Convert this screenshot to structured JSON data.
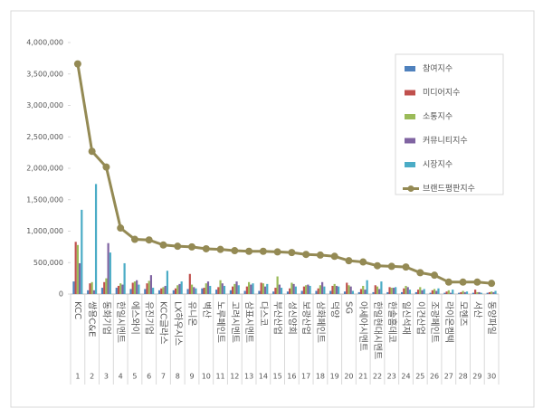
{
  "chart_data": {
    "type": "bar",
    "categories": [
      "KCC",
      "쌍용C&E",
      "동화기업",
      "한일시멘트",
      "에스와이",
      "유진기업",
      "KCC글라스",
      "LX하우시스",
      "유니온",
      "벽산",
      "노루페인트",
      "고려시멘트",
      "삼표시멘트",
      "다스코",
      "부산산업",
      "성신양회",
      "보광산업",
      "삼화페인트",
      "덕양",
      "SG",
      "아세아시멘트",
      "한일현대시멘트",
      "한솔홈데코",
      "일신석재",
      "이건산업",
      "조광페인트",
      "라이온켐텍",
      "모헨즈",
      "서산",
      "동양파일"
    ],
    "ranks": [
      1,
      2,
      3,
      4,
      5,
      6,
      7,
      8,
      9,
      10,
      11,
      12,
      13,
      14,
      15,
      16,
      17,
      18,
      19,
      20,
      21,
      22,
      23,
      24,
      25,
      26,
      27,
      28,
      29,
      30
    ],
    "series": [
      {
        "name": "참여지수",
        "color": "#4f81bd",
        "values": [
          200000,
          60000,
          100000,
          100000,
          80000,
          80000,
          60000,
          60000,
          80000,
          90000,
          70000,
          60000,
          50000,
          50000,
          40000,
          40000,
          50000,
          50000,
          50000,
          40000,
          30000,
          30000,
          30000,
          30000,
          30000,
          20000,
          20000,
          20000,
          20000,
          20000
        ]
      },
      {
        "name": "미디어지수",
        "color": "#c0504d",
        "values": [
          830000,
          170000,
          190000,
          130000,
          180000,
          170000,
          90000,
          90000,
          320000,
          100000,
          110000,
          120000,
          120000,
          180000,
          100000,
          90000,
          120000,
          90000,
          130000,
          180000,
          80000,
          140000,
          110000,
          90000,
          70000,
          60000,
          40000,
          30000,
          70000,
          30000
        ]
      },
      {
        "name": "소통지수",
        "color": "#9bbb59",
        "values": [
          780000,
          190000,
          250000,
          170000,
          200000,
          210000,
          110000,
          140000,
          150000,
          170000,
          220000,
          160000,
          190000,
          170000,
          280000,
          180000,
          140000,
          140000,
          160000,
          140000,
          130000,
          120000,
          100000,
          130000,
          110000,
          80000,
          60000,
          50000,
          30000,
          40000
        ]
      },
      {
        "name": "커뮤니티지수",
        "color": "#8064a2",
        "values": [
          490000,
          60000,
          810000,
          150000,
          220000,
          300000,
          130000,
          160000,
          110000,
          200000,
          170000,
          200000,
          150000,
          120000,
          150000,
          160000,
          150000,
          190000,
          130000,
          120000,
          70000,
          80000,
          100000,
          110000,
          60000,
          50000,
          20000,
          30000,
          30000,
          30000
        ]
      },
      {
        "name": "시장지수",
        "color": "#4bacc6",
        "values": [
          1340000,
          1750000,
          660000,
          490000,
          150000,
          100000,
          370000,
          200000,
          90000,
          130000,
          130000,
          140000,
          170000,
          160000,
          100000,
          120000,
          130000,
          120000,
          120000,
          50000,
          220000,
          200000,
          110000,
          70000,
          80000,
          90000,
          70000,
          40000,
          20000,
          50000
        ]
      },
      {
        "name": "브랜드평판지수",
        "color": "#948a54",
        "type": "line",
        "values": [
          3660000,
          2270000,
          2020000,
          1050000,
          870000,
          860000,
          780000,
          760000,
          750000,
          720000,
          710000,
          690000,
          680000,
          680000,
          670000,
          660000,
          630000,
          620000,
          600000,
          530000,
          510000,
          450000,
          440000,
          430000,
          340000,
          300000,
          190000,
          190000,
          190000,
          170000
        ]
      }
    ],
    "ylim": [
      0,
      4000000
    ],
    "yticks": [
      0,
      {
        "value": 500000,
        "label": "500,000"
      },
      {
        "value": 1000000,
        "label": "1,000,000"
      },
      {
        "value": 1500000,
        "label": "1,500,000"
      },
      {
        "value": 2000000,
        "label": "2,000,000"
      },
      {
        "value": 2500000,
        "label": "2,500,000"
      },
      {
        "value": 3000000,
        "label": "3,000,000"
      },
      {
        "value": 3500000,
        "label": "3,500,000"
      },
      {
        "value": 4000000,
        "label": "4,000,000"
      }
    ],
    "legend": "right"
  }
}
